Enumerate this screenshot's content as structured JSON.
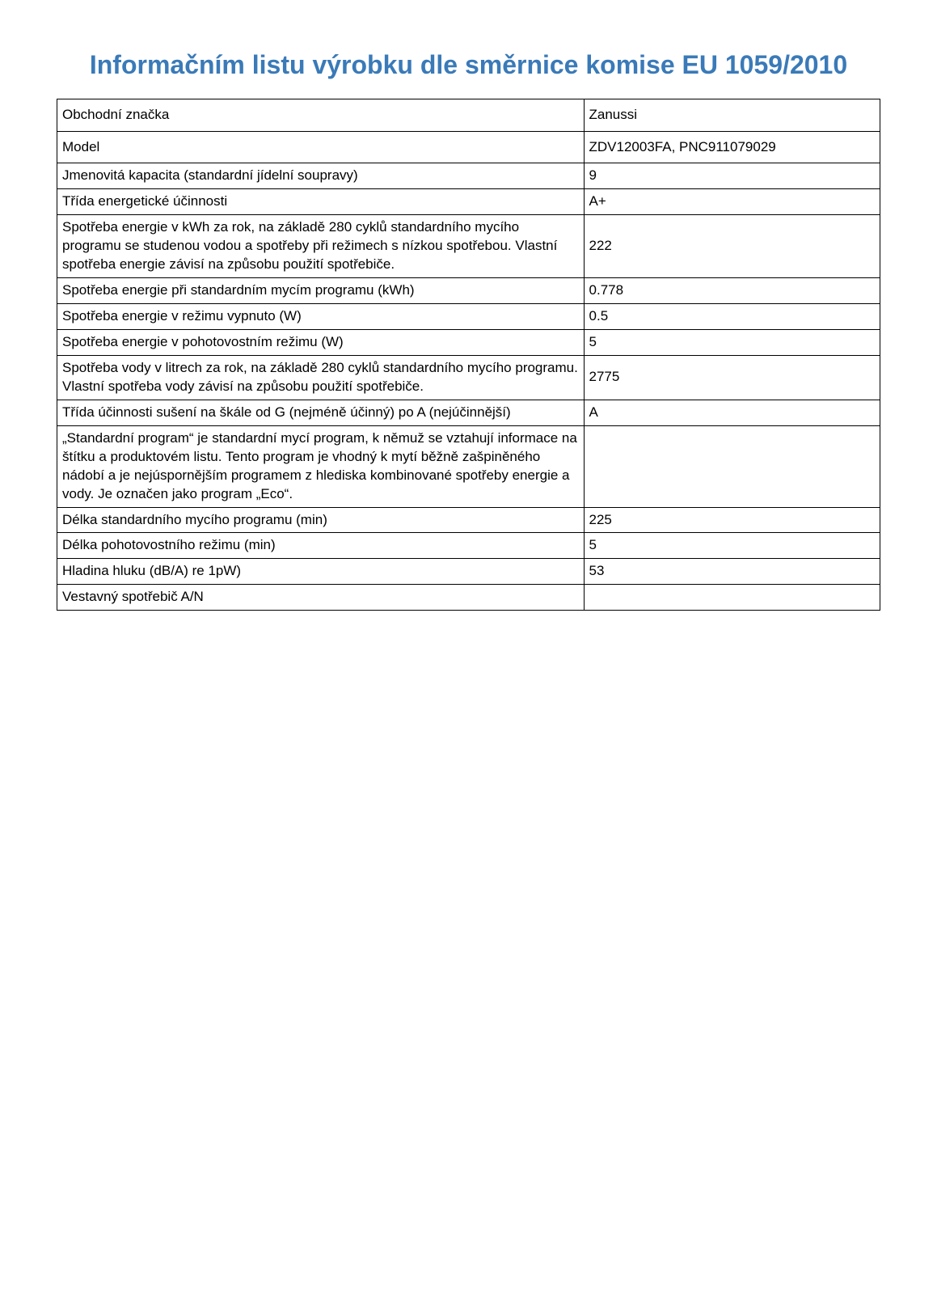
{
  "title": "Informačním listu výrobku dle směrnice komise EU 1059/2010",
  "table": {
    "rows": [
      {
        "label": "Obchodní značka",
        "value": "Zanussi",
        "taller": true
      },
      {
        "label": "Model",
        "value": "ZDV12003FA, PNC911079029",
        "taller": true
      },
      {
        "label": "Jmenovitá kapacita (standardní jídelní soupravy)",
        "value": "9",
        "taller": false
      },
      {
        "label": "Třída energetické účinnosti",
        "value": "A+",
        "taller": false
      },
      {
        "label": "Spotřeba energie v kWh za rok, na základě 280 cyklů standardního mycího programu se studenou vodou a spotřeby při režimech s nízkou spotřebou. Vlastní spotřeba energie závisí na způsobu použití spotřebiče.",
        "value": "222",
        "taller": false
      },
      {
        "label": "Spotřeba energie při standardním mycím programu (kWh)",
        "value": "0.778",
        "taller": false
      },
      {
        "label": "Spotřeba energie v režimu vypnuto (W)",
        "value": "0.5",
        "taller": false
      },
      {
        "label": "Spotřeba energie v pohotovostním režimu (W)",
        "value": "5",
        "taller": false
      },
      {
        "label": "Spotřeba vody v litrech za rok, na základě 280 cyklů standardního mycího programu. Vlastní spotřeba vody závisí na způsobu použití spotřebiče.",
        "value": "2775",
        "taller": false
      },
      {
        "label": "Třída účinnosti sušení na škále od G (nejméně účinný) po A (nejúčinnější)",
        "value": "A",
        "taller": false
      },
      {
        "label": "„Standardní program“ je standardní mycí program, k němuž se vztahují informace na štítku a produktovém listu. Tento program je vhodný k mytí běžně zašpiněného nádobí a je nejúspornějším programem z hlediska kombinované spotřeby energie a vody.  Je označen jako program „Eco“.",
        "value": "",
        "taller": false
      },
      {
        "label": "Délka standardního mycího programu (min)",
        "value": "225",
        "taller": false
      },
      {
        "label": "Délka pohotovostního režimu (min)",
        "value": "5",
        "taller": false
      },
      {
        "label": "Hladina hluku (dB/A) re 1pW)",
        "value": "53",
        "taller": false
      },
      {
        "label": "Vestavný spotřebič A/N",
        "value": "",
        "taller": false
      }
    ]
  },
  "styles": {
    "title_color": "#3a7ab8",
    "title_fontsize": 32,
    "cell_fontsize": 17,
    "border_color": "#000000",
    "text_color": "#000000",
    "background_color": "#ffffff",
    "label_col_width_pct": 64,
    "value_col_width_pct": 36
  }
}
